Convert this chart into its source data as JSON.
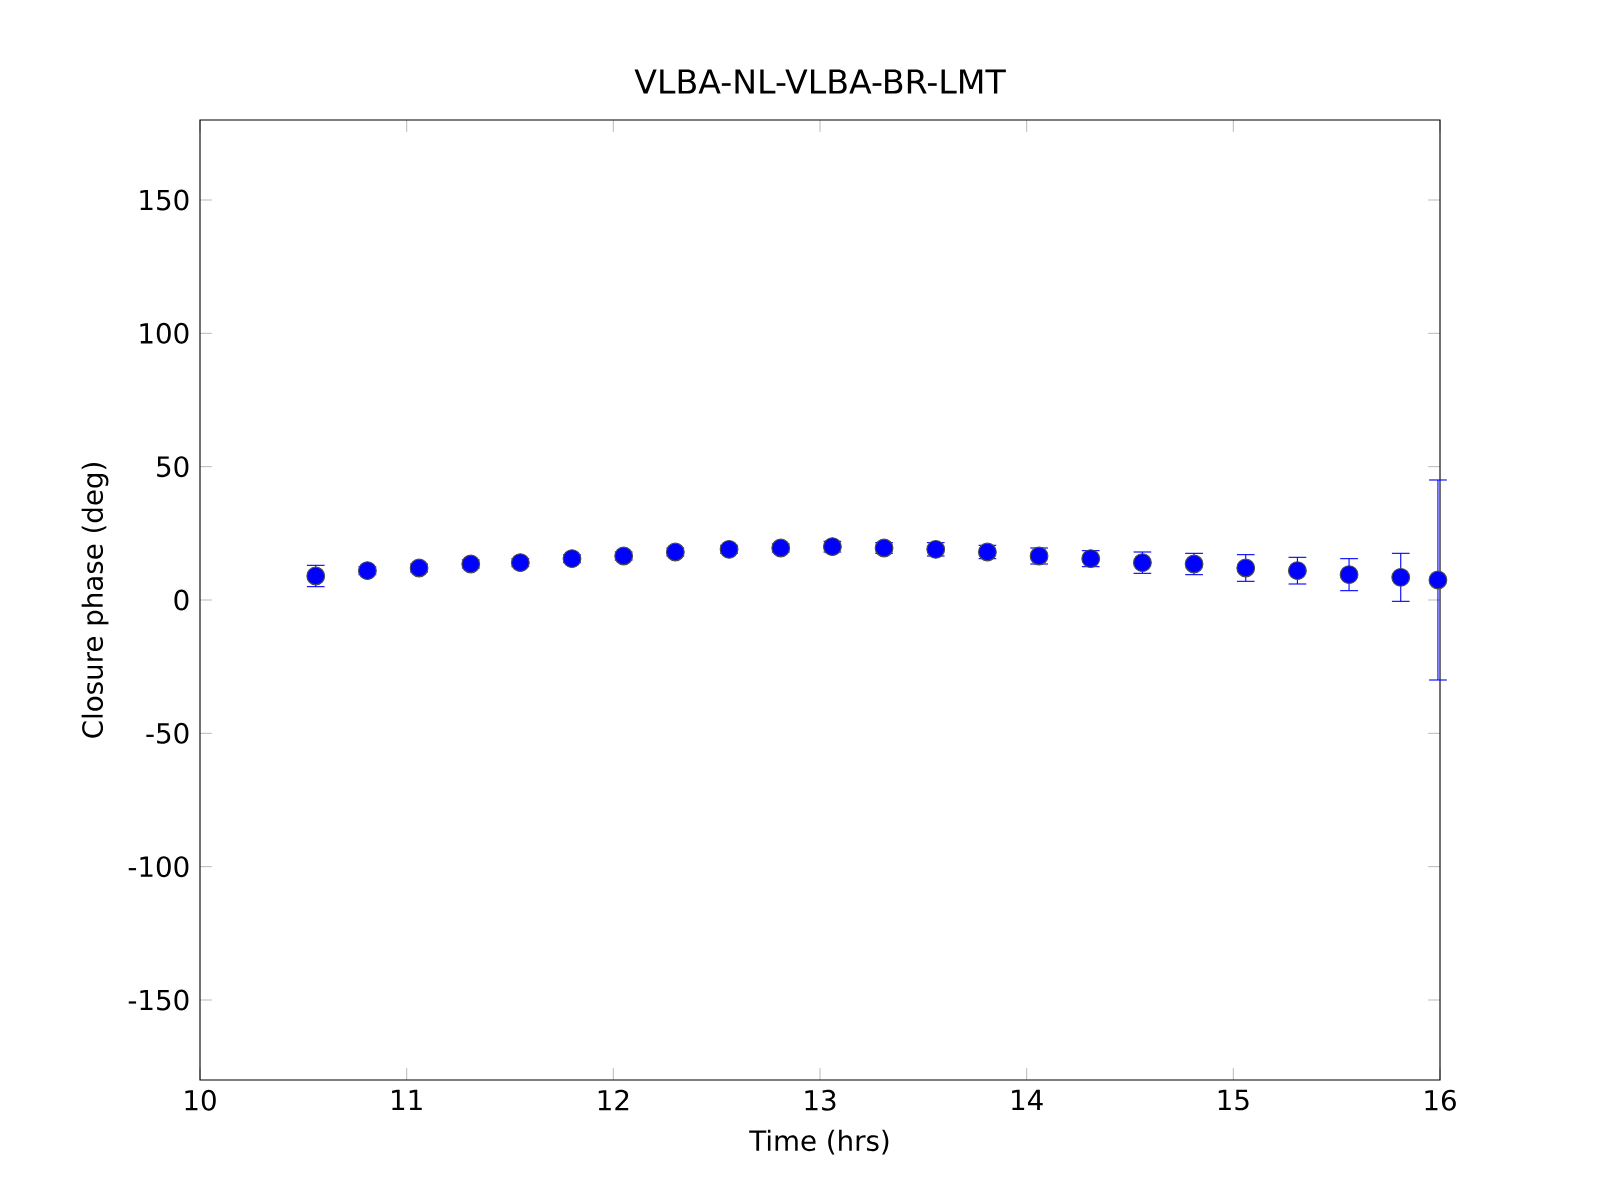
{
  "chart_data": {
    "type": "scatter",
    "title": "VLBA-NL-VLBA-BR-LMT",
    "xlabel": "Time (hrs)",
    "ylabel": "Closure phase (deg)",
    "x": [
      10.56,
      10.81,
      11.06,
      11.31,
      11.55,
      11.8,
      12.05,
      12.3,
      12.56,
      12.81,
      13.06,
      13.31,
      13.56,
      13.81,
      14.06,
      14.31,
      14.56,
      14.81,
      15.06,
      15.31,
      15.56,
      15.81,
      15.99
    ],
    "values": [
      9,
      11,
      12,
      13.5,
      14,
      15.5,
      16.5,
      18,
      19,
      19.5,
      20,
      19.5,
      19,
      18,
      16.5,
      15.5,
      14,
      13.5,
      12,
      11,
      9.5,
      8.5,
      7.5
    ],
    "errors": [
      4,
      1.5,
      1.5,
      1.5,
      1.5,
      1.5,
      1.5,
      1.5,
      1.5,
      1.5,
      2,
      2,
      2.5,
      2.5,
      3,
      3,
      4,
      4,
      5,
      5,
      6,
      9,
      37.5
    ],
    "color": "#0000ff",
    "marker": "circle",
    "xlim": [
      10,
      16
    ],
    "ylim": [
      -180,
      180
    ],
    "xticks": [
      10,
      11,
      12,
      13,
      14,
      15,
      16
    ],
    "yticks": [
      -150,
      -100,
      -50,
      0,
      50,
      100,
      150
    ]
  }
}
